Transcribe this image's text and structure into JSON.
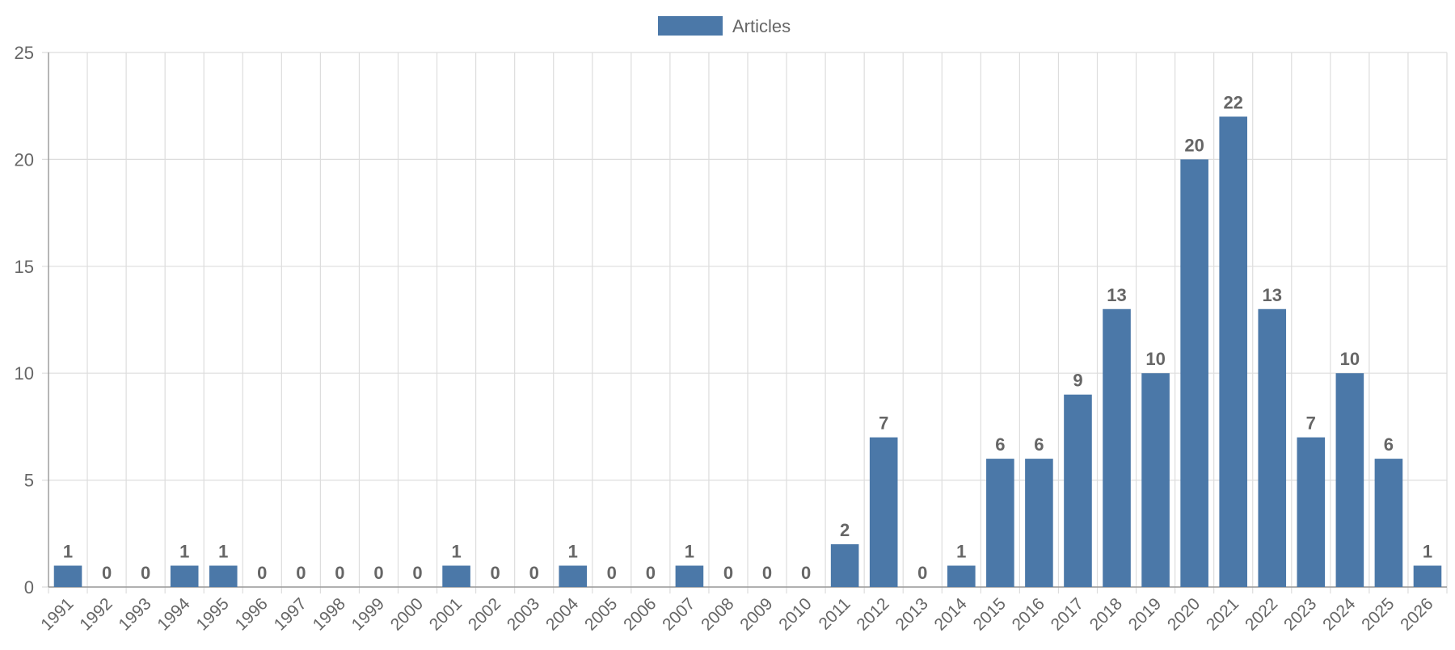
{
  "chart_data": {
    "type": "bar",
    "categories": [
      "1991",
      "1992",
      "1993",
      "1994",
      "1995",
      "1996",
      "1997",
      "1998",
      "1999",
      "2000",
      "2001",
      "2002",
      "2003",
      "2004",
      "2005",
      "2006",
      "2007",
      "2008",
      "2009",
      "2010",
      "2011",
      "2012",
      "2013",
      "2014",
      "2015",
      "2016",
      "2017",
      "2018",
      "2019",
      "2020",
      "2021",
      "2022",
      "2023",
      "2024",
      "2025",
      "2026"
    ],
    "series": [
      {
        "name": "Articles",
        "color": "#4b78a8",
        "values": [
          1,
          0,
          0,
          1,
          1,
          0,
          0,
          0,
          0,
          0,
          1,
          0,
          0,
          1,
          0,
          0,
          1,
          0,
          0,
          0,
          2,
          7,
          0,
          1,
          6,
          6,
          9,
          13,
          10,
          20,
          22,
          13,
          7,
          10,
          6,
          1
        ]
      }
    ],
    "ylim": [
      0,
      25
    ],
    "yticks": [
      0,
      5,
      10,
      15,
      20,
      25
    ],
    "grid": true,
    "legend": "top-center",
    "data_labels": true
  }
}
